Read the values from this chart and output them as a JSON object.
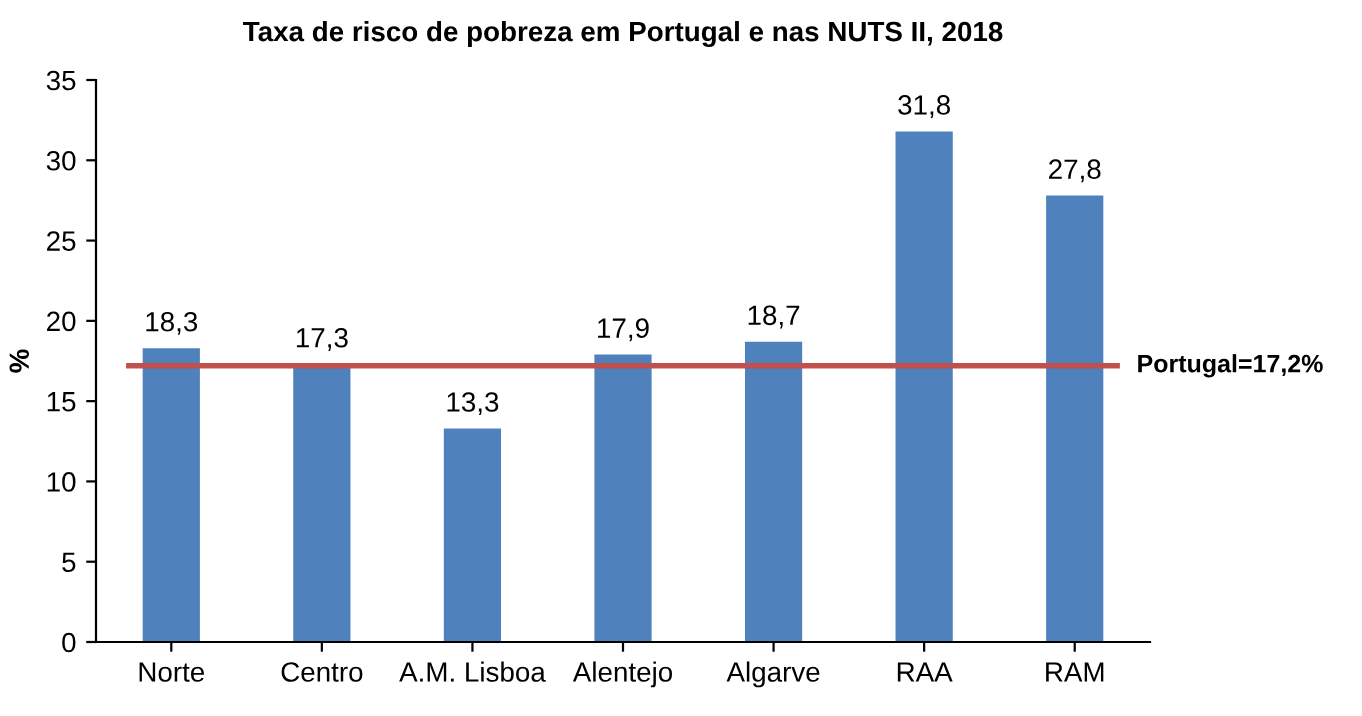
{
  "chart_data": {
    "type": "bar",
    "title": "Taxa de risco de pobreza em Portugal e nas NUTS II, 2018",
    "ylabel": "%",
    "categories": [
      "Norte",
      "Centro",
      "A.M. Lisboa",
      "Alentejo",
      "Algarve",
      "RAA",
      "RAM"
    ],
    "values": [
      18.3,
      17.3,
      13.3,
      17.9,
      18.7,
      31.8,
      27.8
    ],
    "value_labels": [
      "18,3",
      "17,3",
      "13,3",
      "17,9",
      "18,7",
      "31,8",
      "27,8"
    ],
    "color": "#4f81bd",
    "ylim": [
      0,
      35
    ],
    "yticks": [
      0,
      5,
      10,
      15,
      20,
      25,
      30,
      35
    ],
    "ref_lines": [
      {
        "axis": "y",
        "value": 17.2,
        "label": "Portugal=17,2%",
        "color": "#c0504d"
      }
    ],
    "grid": false,
    "legend": false
  }
}
